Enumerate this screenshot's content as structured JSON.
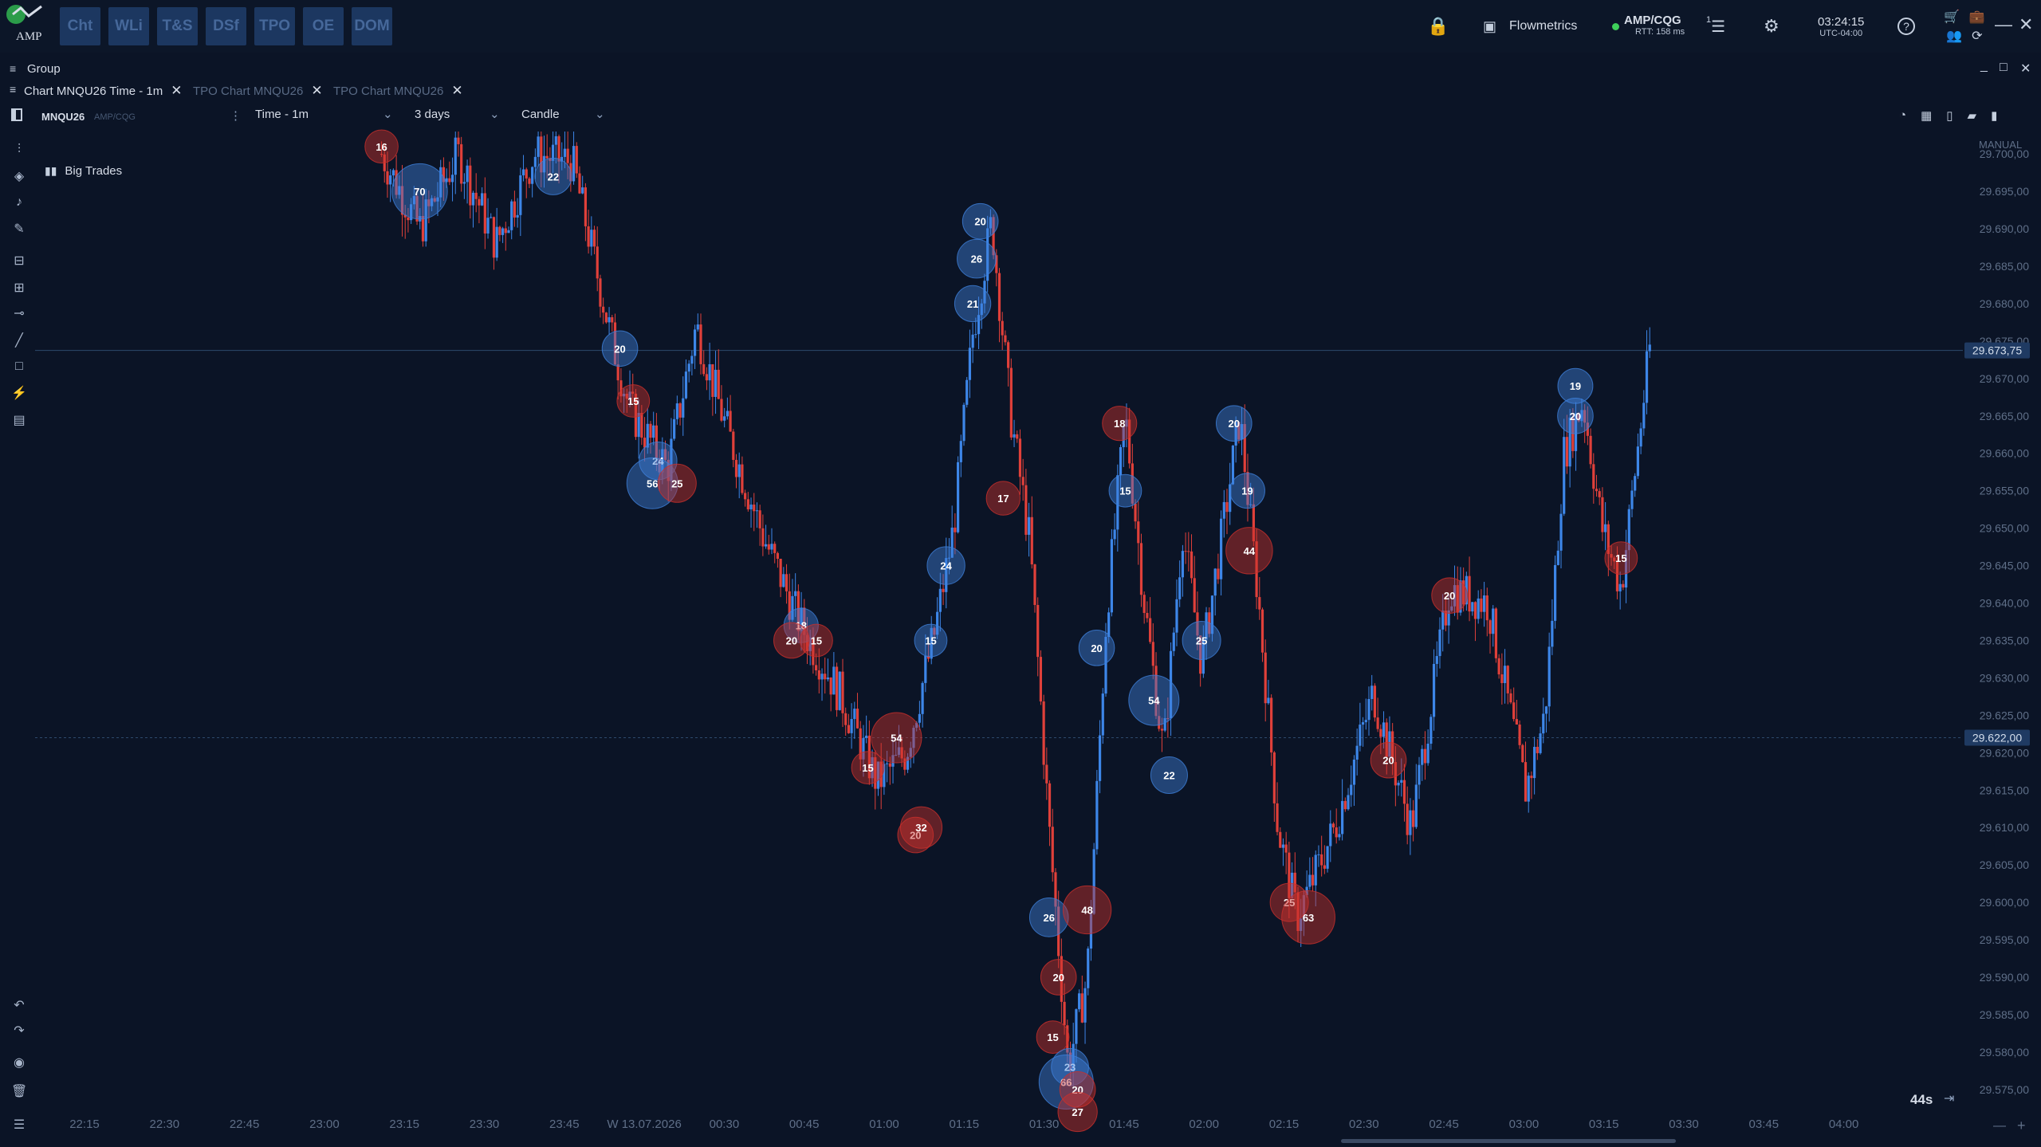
{
  "topbar": {
    "logo_text": "AMP",
    "modules": [
      "Cht",
      "WLi",
      "T&S",
      "DSf",
      "TPO",
      "OE",
      "DOM"
    ],
    "layout_name": "Flowmetrics",
    "connection": "AMP/CQG",
    "rtt": "RTT: 158 ms",
    "chat_badge": "1",
    "time": "03:24:15",
    "timezone": "UTC-04:00",
    "colors": {
      "connected": "#3ecf5a",
      "module_bg": "#1c3760"
    }
  },
  "group": {
    "label": "Group"
  },
  "tabs": [
    {
      "label": "Chart MNQU26 Time - 1m",
      "active": true
    },
    {
      "label": "TPO Chart MNQU26",
      "active": false
    },
    {
      "label": "TPO Chart MNQU26",
      "active": false
    }
  ],
  "toolbar": {
    "symbol": "MNQU26",
    "feed": "AMP/CQG",
    "timeframe": "Time - 1m",
    "range": "3 days",
    "style": "Candle",
    "scale_mode": "MANUAL"
  },
  "indicator": {
    "label": "Big Trades"
  },
  "footer": {
    "countdown": "44s"
  },
  "chart_data": {
    "type": "candlestick",
    "colors": {
      "up": "#3d86e8",
      "down": "#e0403a",
      "bubble_buy": "#3d7fd9",
      "bubble_sell": "#c9302c"
    },
    "y_axis": {
      "ticks": [
        "29.700,00",
        "29.695,00",
        "29.690,00",
        "29.685,00",
        "29.680,00",
        "29.675,00",
        "29.670,00",
        "29.665,00",
        "29.660,00",
        "29.655,00",
        "29.650,00",
        "29.645,00",
        "29.640,00",
        "29.635,00",
        "29.630,00",
        "29.625,00",
        "29.620,00",
        "29.615,00",
        "29.610,00",
        "29.605,00",
        "29.600,00",
        "29.595,00",
        "29.590,00",
        "29.585,00",
        "29.580,00",
        "29.575,00"
      ],
      "range": [
        29572,
        29703
      ]
    },
    "x_axis": {
      "ticks": [
        "22:15",
        "22:30",
        "22:45",
        "23:00",
        "23:15",
        "23:30",
        "23:45",
        "W 13.07.2026",
        "00:30",
        "00:45",
        "01:00",
        "01:15",
        "01:30",
        "01:45",
        "02:00",
        "02:15",
        "02:30",
        "02:45",
        "03:00",
        "03:15",
        "03:30",
        "03:45",
        "04:00"
      ]
    },
    "price_lines": [
      {
        "value": "29.673,75"
      },
      {
        "value": "29.622,00"
      }
    ],
    "big_trades": [
      {
        "t": 0.18,
        "p": 29701,
        "size": 16,
        "side": "sell"
      },
      {
        "t": 0.2,
        "p": 29695,
        "size": 70,
        "side": "buy"
      },
      {
        "t": 0.27,
        "p": 29697,
        "size": 22,
        "side": "buy"
      },
      {
        "t": 0.305,
        "p": 29674,
        "size": 20,
        "side": "buy"
      },
      {
        "t": 0.312,
        "p": 29667,
        "size": 15,
        "side": "sell"
      },
      {
        "t": 0.325,
        "p": 29659,
        "size": 24,
        "side": "buy"
      },
      {
        "t": 0.322,
        "p": 29656,
        "size": 56,
        "side": "buy"
      },
      {
        "t": 0.335,
        "p": 29656,
        "size": 25,
        "side": "sell"
      },
      {
        "t": 0.4,
        "p": 29637,
        "size": 18,
        "side": "buy"
      },
      {
        "t": 0.395,
        "p": 29635,
        "size": 20,
        "side": "sell"
      },
      {
        "t": 0.408,
        "p": 29635,
        "size": 15,
        "side": "sell"
      },
      {
        "t": 0.435,
        "p": 29618,
        "size": 15,
        "side": "sell"
      },
      {
        "t": 0.45,
        "p": 29622,
        "size": 54,
        "side": "sell"
      },
      {
        "t": 0.46,
        "p": 29609,
        "size": 20,
        "side": "sell"
      },
      {
        "t": 0.463,
        "p": 29610,
        "size": 32,
        "side": "sell"
      },
      {
        "t": 0.468,
        "p": 29635,
        "size": 15,
        "side": "buy"
      },
      {
        "t": 0.476,
        "p": 29645,
        "size": 24,
        "side": "buy"
      },
      {
        "t": 0.49,
        "p": 29680,
        "size": 21,
        "side": "buy"
      },
      {
        "t": 0.492,
        "p": 29686,
        "size": 26,
        "side": "buy"
      },
      {
        "t": 0.494,
        "p": 29691,
        "size": 20,
        "side": "buy"
      },
      {
        "t": 0.506,
        "p": 29654,
        "size": 17,
        "side": "sell"
      },
      {
        "t": 0.53,
        "p": 29598,
        "size": 26,
        "side": "buy"
      },
      {
        "t": 0.535,
        "p": 29590,
        "size": 20,
        "side": "sell"
      },
      {
        "t": 0.532,
        "p": 29582,
        "size": 15,
        "side": "sell"
      },
      {
        "t": 0.541,
        "p": 29578,
        "size": 23,
        "side": "buy"
      },
      {
        "t": 0.539,
        "p": 29576,
        "size": 66,
        "side": "buy"
      },
      {
        "t": 0.545,
        "p": 29575,
        "size": 20,
        "side": "sell"
      },
      {
        "t": 0.545,
        "p": 29572,
        "size": 27,
        "side": "sell"
      },
      {
        "t": 0.55,
        "p": 29599,
        "size": 48,
        "side": "sell"
      },
      {
        "t": 0.555,
        "p": 29634,
        "size": 20,
        "side": "buy"
      },
      {
        "t": 0.567,
        "p": 29664,
        "size": 18,
        "side": "sell"
      },
      {
        "t": 0.57,
        "p": 29655,
        "size": 15,
        "side": "buy"
      },
      {
        "t": 0.585,
        "p": 29627,
        "size": 54,
        "side": "buy"
      },
      {
        "t": 0.593,
        "p": 29617,
        "size": 22,
        "side": "buy"
      },
      {
        "t": 0.61,
        "p": 29635,
        "size": 25,
        "side": "buy"
      },
      {
        "t": 0.627,
        "p": 29664,
        "size": 20,
        "side": "buy"
      },
      {
        "t": 0.634,
        "p": 29655,
        "size": 19,
        "side": "buy"
      },
      {
        "t": 0.635,
        "p": 29647,
        "size": 44,
        "side": "sell"
      },
      {
        "t": 0.656,
        "p": 29600,
        "size": 25,
        "side": "sell"
      },
      {
        "t": 0.666,
        "p": 29598,
        "size": 63,
        "side": "sell"
      },
      {
        "t": 0.708,
        "p": 29619,
        "size": 20,
        "side": "sell"
      },
      {
        "t": 0.74,
        "p": 29641,
        "size": 20,
        "side": "sell"
      },
      {
        "t": 0.806,
        "p": 29669,
        "size": 19,
        "side": "buy"
      },
      {
        "t": 0.806,
        "p": 29665,
        "size": 20,
        "side": "buy"
      },
      {
        "t": 0.83,
        "p": 29646,
        "size": 15,
        "side": "sell"
      }
    ],
    "path": [
      [
        0.0,
        29700
      ],
      [
        0.02,
        29690
      ],
      [
        0.04,
        29698
      ],
      [
        0.05,
        29688
      ],
      [
        0.06,
        29700
      ],
      [
        0.08,
        29694
      ],
      [
        0.1,
        29700
      ],
      [
        0.12,
        29700
      ],
      [
        0.14,
        29692
      ],
      [
        0.16,
        29699
      ],
      [
        0.18,
        29700
      ],
      [
        0.2,
        29690
      ],
      [
        0.22,
        29700
      ],
      [
        0.24,
        29688
      ],
      [
        0.26,
        29700
      ],
      [
        0.28,
        29699
      ],
      [
        0.3,
        29676
      ],
      [
        0.31,
        29666
      ],
      [
        0.33,
        29658
      ],
      [
        0.345,
        29677
      ],
      [
        0.36,
        29664
      ],
      [
        0.38,
        29649
      ],
      [
        0.4,
        29637
      ],
      [
        0.42,
        29628
      ],
      [
        0.44,
        29616
      ],
      [
        0.455,
        29620
      ],
      [
        0.47,
        29636
      ],
      [
        0.48,
        29650
      ],
      [
        0.49,
        29676
      ],
      [
        0.5,
        29691
      ],
      [
        0.51,
        29665
      ],
      [
        0.52,
        29648
      ],
      [
        0.53,
        29610
      ],
      [
        0.54,
        29578
      ],
      [
        0.55,
        29590
      ],
      [
        0.56,
        29638
      ],
      [
        0.57,
        29665
      ],
      [
        0.58,
        29640
      ],
      [
        0.59,
        29620
      ],
      [
        0.6,
        29650
      ],
      [
        0.61,
        29632
      ],
      [
        0.62,
        29648
      ],
      [
        0.63,
        29665
      ],
      [
        0.64,
        29640
      ],
      [
        0.65,
        29610
      ],
      [
        0.66,
        29598
      ],
      [
        0.68,
        29610
      ],
      [
        0.7,
        29628
      ],
      [
        0.72,
        29610
      ],
      [
        0.74,
        29642
      ],
      [
        0.76,
        29640
      ],
      [
        0.78,
        29615
      ],
      [
        0.79,
        29625
      ],
      [
        0.8,
        29660
      ],
      [
        0.81,
        29667
      ],
      [
        0.82,
        29650
      ],
      [
        0.83,
        29642
      ],
      [
        0.845,
        29674
      ]
    ]
  }
}
